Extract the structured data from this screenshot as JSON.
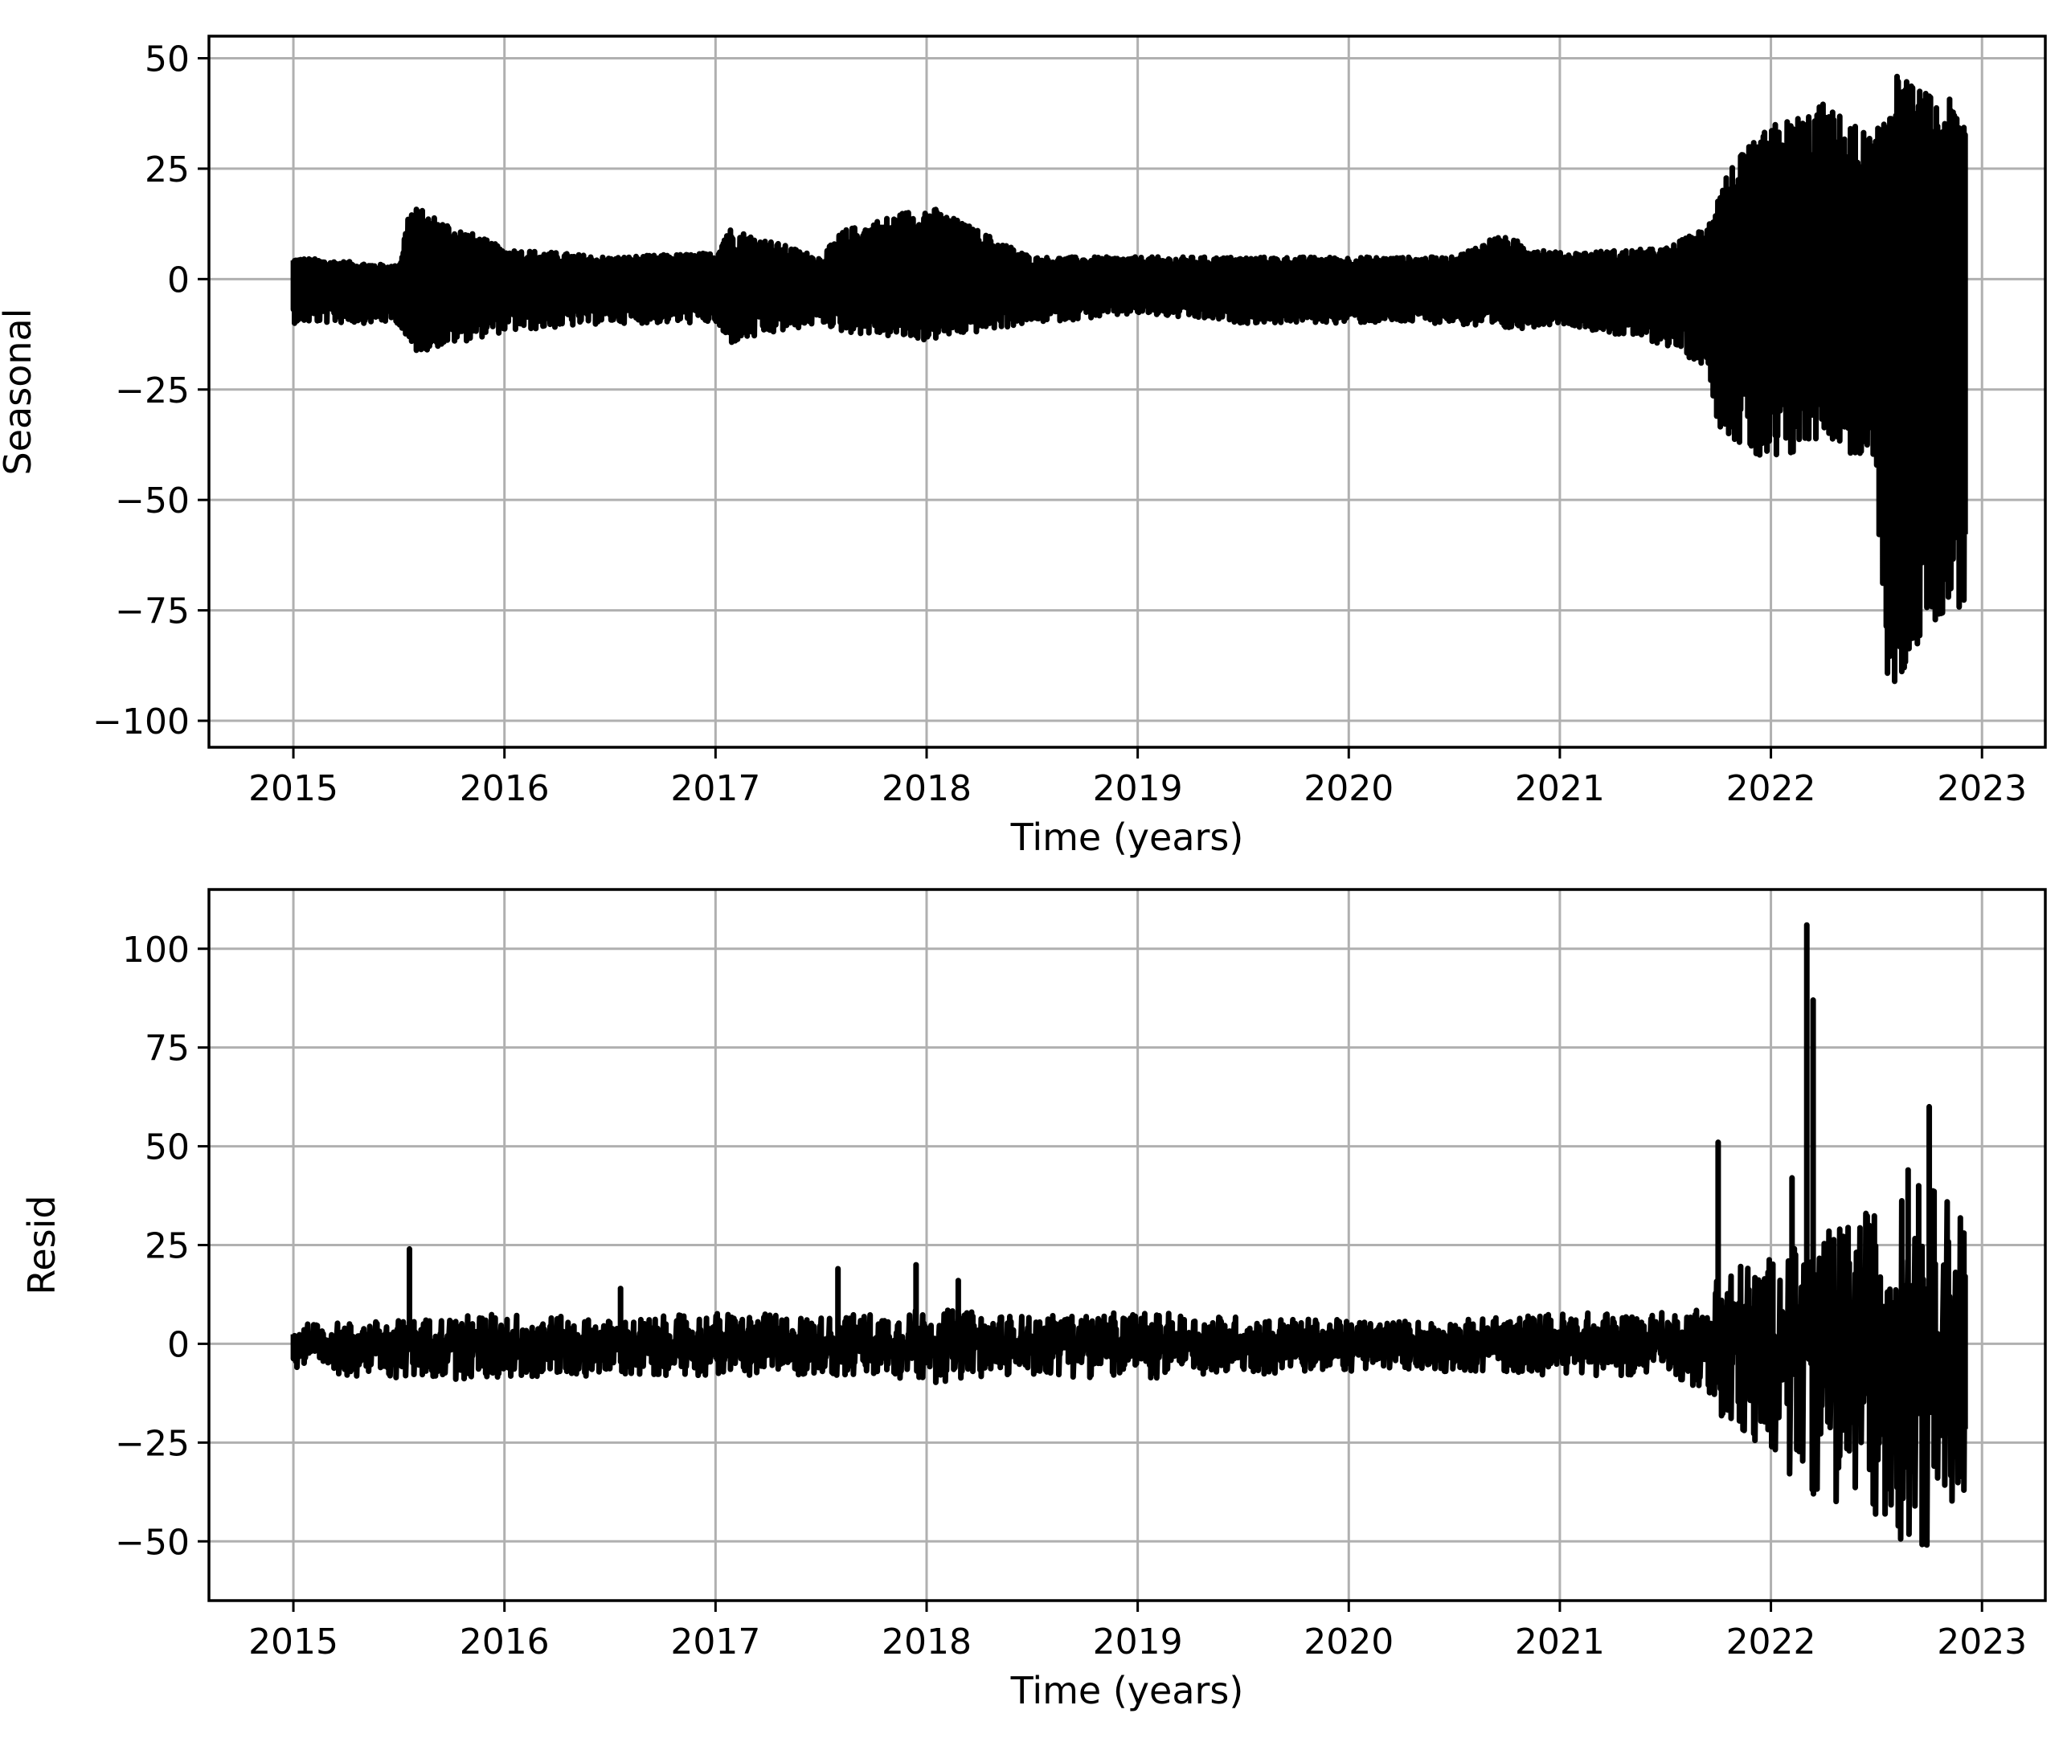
{
  "chart_data": [
    {
      "type": "line",
      "xlabel": "Time (years)",
      "ylabel": "Seasonal",
      "xlim": [
        2014.6,
        2023.3
      ],
      "ylim": [
        -106,
        55
      ],
      "xticks": [
        2015,
        2016,
        2017,
        2018,
        2019,
        2020,
        2021,
        2022,
        2023
      ],
      "xtick_labels": [
        "2015",
        "2016",
        "2017",
        "2018",
        "2019",
        "2020",
        "2021",
        "2022",
        "2023"
      ],
      "yticks": [
        50,
        25,
        0,
        -25,
        -50,
        -75,
        -100
      ],
      "ytick_labels": [
        "50",
        "25",
        "0",
        "−25",
        "−50",
        "−75",
        "−100"
      ],
      "grid": true,
      "line_color": "#000000",
      "series": [
        {
          "x": [
            2015.0,
            2015.5,
            2015.55,
            2016.0,
            2016.5,
            2017.0,
            2017.05,
            2017.5,
            2017.6,
            2018.0,
            2018.5,
            2019.0,
            2019.5,
            2020.0,
            2020.5,
            2020.7,
            2021.0,
            2021.5,
            2021.7,
            2021.75,
            2022.0,
            2022.25,
            2022.5,
            2022.55,
            2022.75,
            2022.9
          ],
          "upper": [
            5,
            3,
            17,
            7,
            5,
            6,
            12,
            5,
            11,
            17,
            5,
            5,
            5,
            5,
            5,
            10,
            6,
            7,
            12,
            23,
            35,
            40,
            32,
            48,
            42,
            40
          ],
          "lower": [
            -10,
            -10,
            -17,
            -12,
            -10,
            -10,
            -15,
            -10,
            -12,
            -14,
            -10,
            -8,
            -10,
            -10,
            -10,
            -12,
            -10,
            -15,
            -20,
            -33,
            -45,
            -35,
            -45,
            -100,
            -78,
            -75
          ]
        }
      ]
    },
    {
      "type": "line",
      "xlabel": "Time (years)",
      "ylabel": "Resid",
      "xlim": [
        2014.6,
        2023.3
      ],
      "ylim": [
        -65,
        115
      ],
      "xticks": [
        2015,
        2016,
        2017,
        2018,
        2019,
        2020,
        2021,
        2022,
        2023
      ],
      "xtick_labels": [
        "2015",
        "2016",
        "2017",
        "2018",
        "2019",
        "2020",
        "2021",
        "2022",
        "2023"
      ],
      "yticks": [
        100,
        75,
        50,
        25,
        0,
        -25,
        -50
      ],
      "ytick_labels": [
        "100",
        "75",
        "50",
        "25",
        "0",
        "−25",
        "−50"
      ],
      "grid": true,
      "line_color": "#000000",
      "series": [
        {
          "band_x": [
            2015.0,
            2015.5,
            2016.0,
            2016.5,
            2017.0,
            2017.5,
            2018.0,
            2018.5,
            2019.0,
            2019.5,
            2020.0,
            2020.5,
            2021.0,
            2021.5,
            2021.7,
            2021.75,
            2022.0,
            2022.25,
            2022.5,
            2022.75,
            2022.9
          ],
          "upper": [
            5,
            6,
            8,
            6,
            8,
            7,
            9,
            7,
            8,
            7,
            6,
            6,
            8,
            8,
            10,
            20,
            22,
            28,
            35,
            40,
            38
          ],
          "lower": [
            -7,
            -9,
            -9,
            -8,
            -8,
            -8,
            -10,
            -8,
            -9,
            -8,
            -7,
            -7,
            -8,
            -8,
            -12,
            -20,
            -30,
            -40,
            -45,
            -55,
            -38
          ],
          "spikes_x": [
            2015.55,
            2016.55,
            2017.58,
            2017.95,
            2018.15,
            2021.75,
            2022.1,
            2022.17,
            2022.2,
            2022.45,
            2022.65,
            2022.7,
            2022.75
          ],
          "spikes_y": [
            24,
            14,
            19,
            20,
            16,
            51,
            42,
            106,
            87,
            33,
            44,
            40,
            60
          ]
        }
      ]
    }
  ]
}
